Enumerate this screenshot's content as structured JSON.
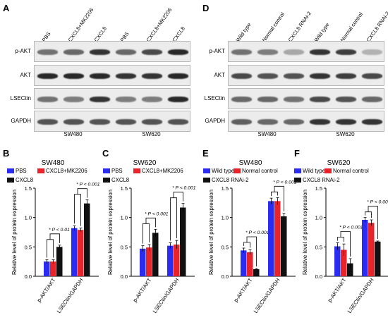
{
  "panels": {
    "A": {
      "letter": "A",
      "columns": [
        "PBS",
        "CXCL8+MK2206",
        "CXCL8",
        "PBS",
        "CXCL8+MK2206",
        "CXCL8"
      ],
      "rows": [
        "p-AKT",
        "AKT",
        "LSECtin",
        "GAPDH"
      ],
      "groups": [
        "SW480",
        "SW620"
      ]
    },
    "D": {
      "letter": "D",
      "columns": [
        "Wild type",
        "Normal control",
        "CXCL8 RNAi-2",
        "Wild type",
        "Normal control",
        "CXCL8 RNAi-2"
      ],
      "rows": [
        "p-AKT",
        "AKT",
        "LSECtin",
        "GAPDH"
      ],
      "groups": [
        "SW480",
        "SW620"
      ]
    }
  },
  "colors": {
    "blue": "#2a2cf2",
    "red": "#e8232a",
    "black": "#111111"
  },
  "chart_data": [
    {
      "panel": "B",
      "type": "bar",
      "title": "SW480",
      "ylabel": "Relative level of protein expression",
      "categories": [
        "p-AKT/AKT",
        "LSECtin/GAPDH"
      ],
      "series": [
        {
          "name": "PBS",
          "values": [
            0.25,
            0.82
          ]
        },
        {
          "name": "CXCL8+MK2206",
          "values": [
            0.25,
            0.79
          ]
        },
        {
          "name": "CXCL8",
          "values": [
            0.5,
            1.24
          ]
        }
      ],
      "errors": [
        [
          0.03,
          0.04
        ],
        [
          0.03,
          0.03
        ],
        [
          0.03,
          0.06
        ]
      ],
      "annotations": [
        "* P < 0.01",
        "* P < 0.001"
      ],
      "ylim": [
        0,
        1.5
      ],
      "yticks": [
        "0.0",
        "0.5",
        "1.0",
        "1.5"
      ]
    },
    {
      "panel": "C",
      "type": "bar",
      "title": "SW620",
      "ylabel": "Relative level of protein expression",
      "categories": [
        "p-AKT/AKT",
        "LSECtin/GAPDH"
      ],
      "series": [
        {
          "name": "PBS",
          "values": [
            0.47,
            0.52
          ]
        },
        {
          "name": "CXCL8+MK2206",
          "values": [
            0.49,
            0.54
          ]
        },
        {
          "name": "CXCL8",
          "values": [
            0.74,
            1.17
          ]
        }
      ],
      "errors": [
        [
          0.05,
          0.05
        ],
        [
          0.05,
          0.07
        ],
        [
          0.06,
          0.07
        ]
      ],
      "annotations": [
        "* P < 0.001",
        "* P < 0.001"
      ],
      "ylim": [
        0,
        1.5
      ],
      "yticks": [
        "0.0",
        "0.5",
        "1.0",
        "1.5"
      ]
    },
    {
      "panel": "E",
      "type": "bar",
      "title": "SW480",
      "ylabel": "Relative level of protein expression",
      "categories": [
        "p-AKT/AKT",
        "LSECtin/GAPDH"
      ],
      "series": [
        {
          "name": "Wild type",
          "values": [
            0.44,
            1.28
          ]
        },
        {
          "name": "Normal control",
          "values": [
            0.41,
            1.28
          ]
        },
        {
          "name": "CXCL8 RNAi-2",
          "values": [
            0.12,
            1.02
          ]
        }
      ],
      "errors": [
        [
          0.04,
          0.05
        ],
        [
          0.04,
          0.06
        ],
        [
          0.01,
          0.05
        ]
      ],
      "annotations": [
        "* P < 0.001",
        "* P < 0.001"
      ],
      "ylim": [
        0,
        1.5
      ],
      "yticks": [
        "0.0",
        "0.5",
        "1.0",
        "1.5"
      ]
    },
    {
      "panel": "F",
      "type": "bar",
      "title": "SW620",
      "ylabel": "Relative level of protein expression",
      "categories": [
        "p-AKT/AKT",
        "LSECtin/GAPDH"
      ],
      "series": [
        {
          "name": "Wild type",
          "values": [
            0.51,
            0.96
          ]
        },
        {
          "name": "Normal control",
          "values": [
            0.45,
            0.91
          ]
        },
        {
          "name": "CXCL8 RNAi-2",
          "values": [
            0.22,
            0.59
          ]
        }
      ],
      "errors": [
        [
          0.06,
          0.04
        ],
        [
          0.1,
          0.05
        ],
        [
          0.08,
          0.01
        ]
      ],
      "annotations": [
        "* P < 0.001",
        "* P < 0.001"
      ],
      "ylim": [
        0,
        1.5
      ],
      "yticks": [
        "0.0",
        "0.5",
        "1.0",
        "1.5"
      ]
    }
  ]
}
